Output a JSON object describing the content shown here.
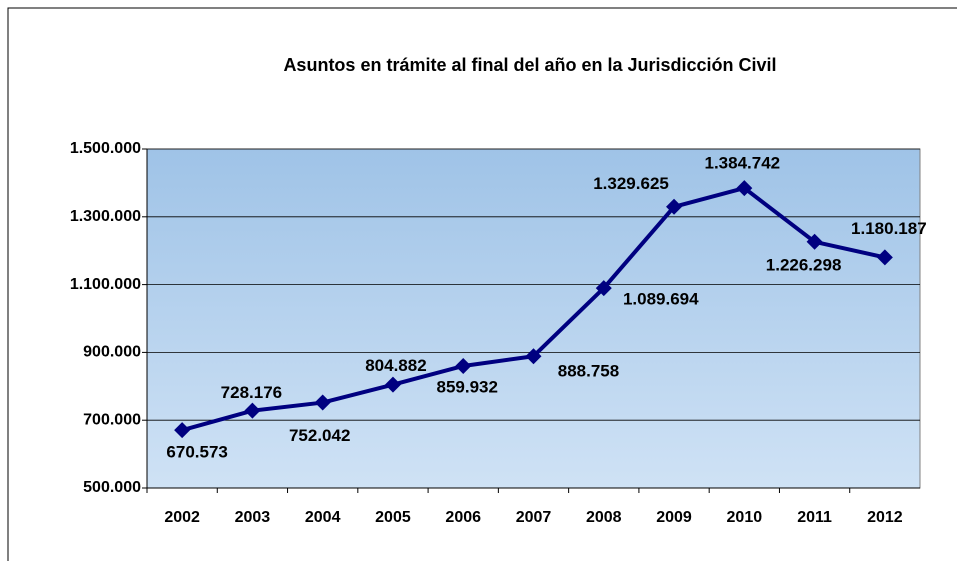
{
  "chart_data": {
    "type": "line",
    "title": "Asuntos en trámite al final del año en la Jurisdicción Civil",
    "categories": [
      "2002",
      "2003",
      "2004",
      "2005",
      "2006",
      "2007",
      "2008",
      "2009",
      "2010",
      "2011",
      "2012"
    ],
    "series": [
      {
        "name": "Asuntos en trámite",
        "color": "#000080",
        "values": [
          670573,
          728176,
          752042,
          804882,
          859932,
          888758,
          1089694,
          1329625,
          1384742,
          1226298,
          1180187
        ],
        "value_labels": [
          "670.573",
          "728.176",
          "752.042",
          "804.882",
          "859.932",
          "888.758",
          "1.089.694",
          "1.329.625",
          "1.384.742",
          "1.226.298",
          "1.180.187"
        ]
      }
    ],
    "ylim": [
      500000,
      1500000
    ],
    "yticks": [
      {
        "value": 500000,
        "label": "500.000"
      },
      {
        "value": 700000,
        "label": "700.000"
      },
      {
        "value": 900000,
        "label": "900.000"
      },
      {
        "value": 1100000,
        "label": "1.100.000"
      },
      {
        "value": 1300000,
        "label": "1.300.000"
      },
      {
        "value": 1500000,
        "label": "1.500.000"
      }
    ],
    "grid": true
  }
}
